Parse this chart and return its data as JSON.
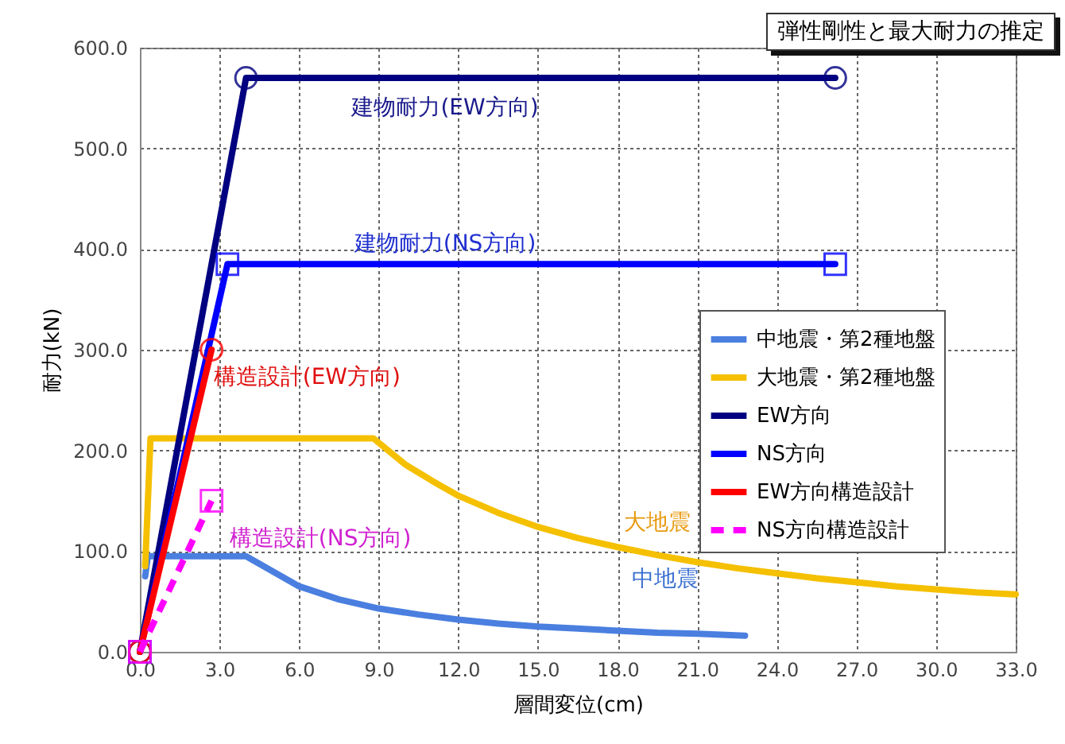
{
  "chart_data": {
    "type": "line",
    "title": "弾性剛性と最大耐力の推定",
    "xlabel": "層間変位(cm)",
    "ylabel": "耐力(kN)",
    "xlim": [
      0,
      33
    ],
    "ylim": [
      0,
      600
    ],
    "xticks": [
      {
        "value": 0,
        "label": "0.0"
      },
      {
        "value": 3,
        "label": "3.0"
      },
      {
        "value": 6,
        "label": "6.0"
      },
      {
        "value": 9,
        "label": "9.0"
      },
      {
        "value": 12,
        "label": "12.0"
      },
      {
        "value": 15,
        "label": "15.0"
      },
      {
        "value": 18,
        "label": "18.0"
      },
      {
        "value": 21,
        "label": "21.0"
      },
      {
        "value": 24,
        "label": "24.0"
      },
      {
        "value": 27,
        "label": "27.0"
      },
      {
        "value": 30,
        "label": "30.0"
      },
      {
        "value": 33,
        "label": "33.0"
      }
    ],
    "yticks": [
      {
        "value": 0,
        "label": "0.0"
      },
      {
        "value": 100,
        "label": "100.0"
      },
      {
        "value": 200,
        "label": "200.0"
      },
      {
        "value": 300,
        "label": "300.0"
      },
      {
        "value": 400,
        "label": "400.0"
      },
      {
        "value": 500,
        "label": "500.0"
      },
      {
        "value": 600,
        "label": "600.0"
      }
    ],
    "grid": true,
    "legend": "right",
    "series": [
      {
        "name": "中地震・第2種地盤",
        "color": "#4a7fe0",
        "marker": "none",
        "line_style": "solid",
        "x": [
          0.2,
          0.3,
          4.0,
          5.0,
          6.0,
          7.5,
          9.0,
          10.5,
          12.0,
          13.5,
          15.0,
          16.5,
          18.0,
          19.5,
          21.0,
          22.8
        ],
        "values": [
          75,
          95,
          95,
          80,
          65,
          52,
          43,
          37,
          32,
          28,
          25,
          23,
          21,
          19,
          18,
          16
        ]
      },
      {
        "name": "大地震・第2種地盤",
        "color": "#f5c000",
        "marker": "none",
        "line_style": "solid",
        "x": [
          0.2,
          0.4,
          8.8,
          10.0,
          11.0,
          12.0,
          13.5,
          15.0,
          16.5,
          18.0,
          19.5,
          21.0,
          22.5,
          24.0,
          25.5,
          27.0,
          28.5,
          30.0,
          31.5,
          33.0
        ],
        "values": [
          85,
          212,
          212,
          186,
          170,
          155,
          138,
          124,
          113,
          104,
          96,
          89,
          83,
          78,
          73,
          69,
          65,
          62,
          59,
          57
        ]
      },
      {
        "name": "EW方向",
        "color": "#000080",
        "marker": "circle",
        "line_style": "solid",
        "x": [
          0,
          4.0,
          26.2
        ],
        "values": [
          0,
          570,
          570
        ]
      },
      {
        "name": "NS方向",
        "color": "#0000ff",
        "marker": "square",
        "line_style": "solid",
        "x": [
          0,
          3.3,
          26.2
        ],
        "values": [
          0,
          385,
          385
        ]
      },
      {
        "name": "EW方向構造設計",
        "color": "#ff0000",
        "marker": "circle",
        "line_style": "solid",
        "x": [
          0,
          2.7
        ],
        "values": [
          0,
          300
        ]
      },
      {
        "name": "NS方向構造設計",
        "color": "#ff00ff",
        "marker": "square",
        "line_style": "dashed",
        "x": [
          0,
          2.7
        ],
        "values": [
          0,
          150
        ]
      }
    ],
    "annotations": [
      "建物耐力(EW方向)",
      "建物耐力(NS方向)",
      "構造設計(EW方向)",
      "構造設計(NS方向)",
      "大地震",
      "中地震"
    ]
  }
}
